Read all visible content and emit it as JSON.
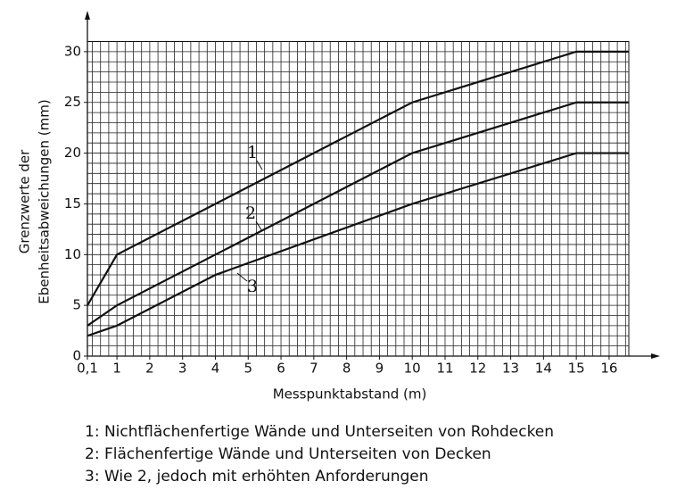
{
  "chart_data": {
    "type": "line",
    "y_label": [
      "Grenzwerte der",
      "Ebenheitsabweichungen (mm)"
    ],
    "x_label": "Messpunktabstand (m)",
    "series": [
      {
        "name": "1",
        "color": "#111111",
        "x": [
          0.1,
          1,
          10,
          15,
          16.6
        ],
        "values": [
          5,
          10,
          25,
          30,
          30
        ]
      },
      {
        "name": "2",
        "color": "#111111",
        "x": [
          0.1,
          1,
          10,
          15,
          16.6
        ],
        "values": [
          3,
          5,
          20,
          25,
          25
        ]
      },
      {
        "name": "3",
        "color": "#111111",
        "x": [
          0.1,
          1,
          4,
          10,
          15,
          16.6
        ],
        "values": [
          2,
          3,
          8,
          15,
          20,
          20
        ]
      }
    ],
    "xlim": [
      0.1,
      16.6
    ],
    "ylim": [
      0,
      31
    ],
    "xticks": [
      {
        "value": 0.1,
        "label": "0,1"
      },
      1,
      2,
      3,
      4,
      5,
      6,
      7,
      8,
      9,
      10,
      11,
      12,
      13,
      14,
      15,
      16
    ],
    "yticks": [
      0,
      5,
      10,
      15,
      20,
      25,
      30
    ],
    "grid": true,
    "x_minor_step": 0.25,
    "y_minor_step": 1,
    "notes": [
      "1: Nichtflächenfertige Wände und Unterseiten von Rohdecken",
      "2: Flächenfertige Wände und Unterseiten von Decken",
      "3: Wie 2, jedoch mit erhöhten Anforderungen"
    ]
  }
}
